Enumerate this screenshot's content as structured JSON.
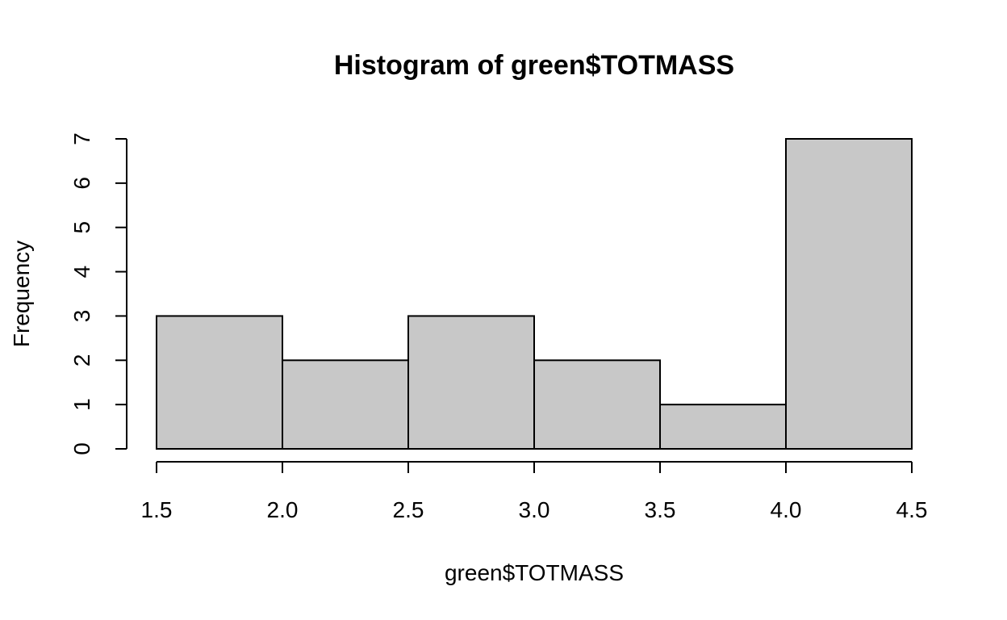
{
  "chart_data": {
    "type": "bar",
    "title": "Histogram of green$TOTMASS",
    "xlabel": "green$TOTMASS",
    "ylabel": "Frequency",
    "bins": [
      {
        "x0": 1.5,
        "x1": 2.0,
        "count": 3
      },
      {
        "x0": 2.0,
        "x1": 2.5,
        "count": 2
      },
      {
        "x0": 2.5,
        "x1": 3.0,
        "count": 3
      },
      {
        "x0": 3.0,
        "x1": 3.5,
        "count": 2
      },
      {
        "x0": 3.5,
        "x1": 4.0,
        "count": 1
      },
      {
        "x0": 4.0,
        "x1": 4.5,
        "count": 7
      }
    ],
    "xlim": [
      1.5,
      4.5
    ],
    "ylim": [
      0,
      7
    ],
    "xticks": [
      1.5,
      2.0,
      2.5,
      3.0,
      3.5,
      4.0,
      4.5
    ],
    "xtick_labels": [
      "1.5",
      "2.0",
      "2.5",
      "3.0",
      "3.5",
      "4.0",
      "4.5"
    ],
    "yticks": [
      0,
      1,
      2,
      3,
      4,
      5,
      6,
      7
    ],
    "ytick_labels": [
      "0",
      "1",
      "2",
      "3",
      "4",
      "5",
      "6",
      "7"
    ],
    "grid": false,
    "colors": {
      "bar_fill": "#c8c8c8",
      "bar_stroke": "#000000"
    }
  }
}
